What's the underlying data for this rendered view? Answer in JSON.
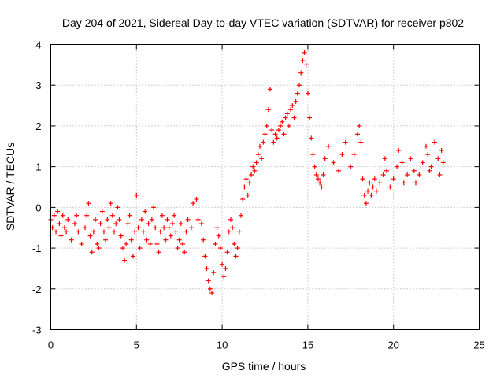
{
  "colors": {
    "series": "#ff0000",
    "grid": "#a0a0a0",
    "axis": "#000000"
  },
  "chart_data": {
    "type": "scatter",
    "title": "Day 204 of 2021, Sidereal Day-to-day VTEC variation (SDTVAR) for receiver p802",
    "xlabel": "GPS time / hours",
    "ylabel": "SDTVAR / TECUs",
    "xlim": [
      0,
      25
    ],
    "ylim": [
      -3,
      4
    ],
    "xticks": [
      0,
      5,
      10,
      15,
      20,
      25
    ],
    "yticks": [
      -3,
      -2,
      -1,
      0,
      1,
      2,
      3,
      4
    ],
    "grid": true,
    "marker": "+",
    "series": [
      {
        "name": "SDTVAR",
        "points": [
          [
            0.0,
            -0.3
          ],
          [
            0.1,
            -0.5
          ],
          [
            0.2,
            -0.2
          ],
          [
            0.3,
            -0.6
          ],
          [
            0.4,
            -0.1
          ],
          [
            0.5,
            -0.4
          ],
          [
            0.6,
            -0.7
          ],
          [
            0.7,
            -0.2
          ],
          [
            0.8,
            -0.5
          ],
          [
            0.9,
            -0.6
          ],
          [
            1.0,
            -0.3
          ],
          [
            1.2,
            -0.8
          ],
          [
            1.4,
            -0.4
          ],
          [
            1.5,
            -0.2
          ],
          [
            1.6,
            -0.6
          ],
          [
            1.8,
            -0.9
          ],
          [
            2.0,
            -0.5
          ],
          [
            2.1,
            -0.2
          ],
          [
            2.2,
            0.1
          ],
          [
            2.3,
            -0.7
          ],
          [
            2.4,
            -1.1
          ],
          [
            2.5,
            -0.6
          ],
          [
            2.6,
            -0.3
          ],
          [
            2.7,
            -0.9
          ],
          [
            2.8,
            -1.0
          ],
          [
            2.9,
            -0.4
          ],
          [
            3.0,
            -0.1
          ],
          [
            3.1,
            -0.6
          ],
          [
            3.2,
            -0.8
          ],
          [
            3.3,
            -0.3
          ],
          [
            3.4,
            -0.5
          ],
          [
            3.5,
            0.1
          ],
          [
            3.6,
            -0.2
          ],
          [
            3.7,
            -0.6
          ],
          [
            3.8,
            -0.4
          ],
          [
            3.9,
            0.0
          ],
          [
            4.0,
            -0.3
          ],
          [
            4.1,
            -0.7
          ],
          [
            4.2,
            -1.0
          ],
          [
            4.3,
            -1.3
          ],
          [
            4.4,
            -0.9
          ],
          [
            4.5,
            -0.4
          ],
          [
            4.6,
            -0.2
          ],
          [
            4.7,
            -0.8
          ],
          [
            4.8,
            -1.2
          ],
          [
            4.9,
            -0.6
          ],
          [
            5.0,
            0.3
          ],
          [
            5.1,
            -0.5
          ],
          [
            5.2,
            -1.0
          ],
          [
            5.3,
            -0.3
          ],
          [
            5.4,
            -0.6
          ],
          [
            5.5,
            -0.1
          ],
          [
            5.6,
            -0.8
          ],
          [
            5.7,
            -0.4
          ],
          [
            5.8,
            -0.9
          ],
          [
            5.9,
            -0.3
          ],
          [
            6.0,
            0.0
          ],
          [
            6.1,
            -0.5
          ],
          [
            6.2,
            -0.9
          ],
          [
            6.3,
            -1.1
          ],
          [
            6.4,
            -0.6
          ],
          [
            6.5,
            -0.2
          ],
          [
            6.6,
            -0.5
          ],
          [
            6.7,
            -0.8
          ],
          [
            6.8,
            -0.3
          ],
          [
            6.9,
            -0.5
          ],
          [
            7.0,
            -0.7
          ],
          [
            7.1,
            -0.4
          ],
          [
            7.2,
            -0.2
          ],
          [
            7.3,
            -0.6
          ],
          [
            7.4,
            -1.0
          ],
          [
            7.5,
            -0.8
          ],
          [
            7.6,
            -0.4
          ],
          [
            7.7,
            -0.9
          ],
          [
            7.8,
            -1.1
          ],
          [
            7.9,
            -0.6
          ],
          [
            8.0,
            -0.3
          ],
          [
            8.2,
            -0.5
          ],
          [
            8.3,
            0.1
          ],
          [
            8.5,
            0.2
          ],
          [
            8.6,
            -0.3
          ],
          [
            8.8,
            -0.4
          ],
          [
            8.9,
            -0.8
          ],
          [
            9.0,
            -1.2
          ],
          [
            9.1,
            -1.5
          ],
          [
            9.2,
            -1.8
          ],
          [
            9.3,
            -2.0
          ],
          [
            9.4,
            -2.1
          ],
          [
            9.5,
            -1.6
          ],
          [
            9.6,
            -0.9
          ],
          [
            9.7,
            -0.5
          ],
          [
            9.8,
            -0.7
          ],
          [
            9.9,
            -1.0
          ],
          [
            10.0,
            -1.4
          ],
          [
            10.1,
            -1.7
          ],
          [
            10.2,
            -1.5
          ],
          [
            10.3,
            -1.1
          ],
          [
            10.4,
            -0.6
          ],
          [
            10.5,
            -0.3
          ],
          [
            10.6,
            -0.5
          ],
          [
            10.7,
            -0.9
          ],
          [
            10.8,
            -1.2
          ],
          [
            10.9,
            -1.0
          ],
          [
            11.0,
            -0.6
          ],
          [
            11.1,
            -0.2
          ],
          [
            11.2,
            0.2
          ],
          [
            11.3,
            0.5
          ],
          [
            11.4,
            0.7
          ],
          [
            11.5,
            0.3
          ],
          [
            11.6,
            0.6
          ],
          [
            11.7,
            0.8
          ],
          [
            11.8,
            1.0
          ],
          [
            11.9,
            0.9
          ],
          [
            12.0,
            1.1
          ],
          [
            12.1,
            1.3
          ],
          [
            12.2,
            1.5
          ],
          [
            12.3,
            1.2
          ],
          [
            12.4,
            1.6
          ],
          [
            12.5,
            1.8
          ],
          [
            12.6,
            2.0
          ],
          [
            12.7,
            2.4
          ],
          [
            12.8,
            2.9
          ],
          [
            12.9,
            1.9
          ],
          [
            13.0,
            1.6
          ],
          [
            13.1,
            1.8
          ],
          [
            13.2,
            1.7
          ],
          [
            13.3,
            1.9
          ],
          [
            13.4,
            2.0
          ],
          [
            13.5,
            2.1
          ],
          [
            13.6,
            1.8
          ],
          [
            13.7,
            2.2
          ],
          [
            13.8,
            2.3
          ],
          [
            13.9,
            2.0
          ],
          [
            14.0,
            2.4
          ],
          [
            14.1,
            2.5
          ],
          [
            14.2,
            2.2
          ],
          [
            14.3,
            2.6
          ],
          [
            14.4,
            2.8
          ],
          [
            14.5,
            3.0
          ],
          [
            14.6,
            3.3
          ],
          [
            14.7,
            3.6
          ],
          [
            14.8,
            3.8
          ],
          [
            14.9,
            3.5
          ],
          [
            15.0,
            2.8
          ],
          [
            15.1,
            2.2
          ],
          [
            15.2,
            1.7
          ],
          [
            15.3,
            1.3
          ],
          [
            15.4,
            1.0
          ],
          [
            15.5,
            0.8
          ],
          [
            15.6,
            0.7
          ],
          [
            15.7,
            0.6
          ],
          [
            15.8,
            0.5
          ],
          [
            15.9,
            0.8
          ],
          [
            16.0,
            1.2
          ],
          [
            16.2,
            1.5
          ],
          [
            16.5,
            1.1
          ],
          [
            16.8,
            0.9
          ],
          [
            17.0,
            1.3
          ],
          [
            17.2,
            1.6
          ],
          [
            17.5,
            1.0
          ],
          [
            17.7,
            1.3
          ],
          [
            17.9,
            1.8
          ],
          [
            18.0,
            2.0
          ],
          [
            18.1,
            1.6
          ],
          [
            18.2,
            0.7
          ],
          [
            18.3,
            0.3
          ],
          [
            18.4,
            0.1
          ],
          [
            18.5,
            0.4
          ],
          [
            18.6,
            0.6
          ],
          [
            18.7,
            0.3
          ],
          [
            18.8,
            0.5
          ],
          [
            18.9,
            0.7
          ],
          [
            19.0,
            0.4
          ],
          [
            19.2,
            0.6
          ],
          [
            19.4,
            0.8
          ],
          [
            19.5,
            1.2
          ],
          [
            19.6,
            0.9
          ],
          [
            19.8,
            0.5
          ],
          [
            20.0,
            0.7
          ],
          [
            20.2,
            1.0
          ],
          [
            20.3,
            1.4
          ],
          [
            20.5,
            1.1
          ],
          [
            20.6,
            0.6
          ],
          [
            20.8,
            0.8
          ],
          [
            21.0,
            1.2
          ],
          [
            21.2,
            0.9
          ],
          [
            21.3,
            0.6
          ],
          [
            21.5,
            0.8
          ],
          [
            21.7,
            1.1
          ],
          [
            21.9,
            1.5
          ],
          [
            22.0,
            1.3
          ],
          [
            22.1,
            0.9
          ],
          [
            22.2,
            1.0
          ],
          [
            22.4,
            1.6
          ],
          [
            22.6,
            1.2
          ],
          [
            22.7,
            0.8
          ],
          [
            22.8,
            1.4
          ],
          [
            22.9,
            1.1
          ]
        ]
      }
    ]
  }
}
